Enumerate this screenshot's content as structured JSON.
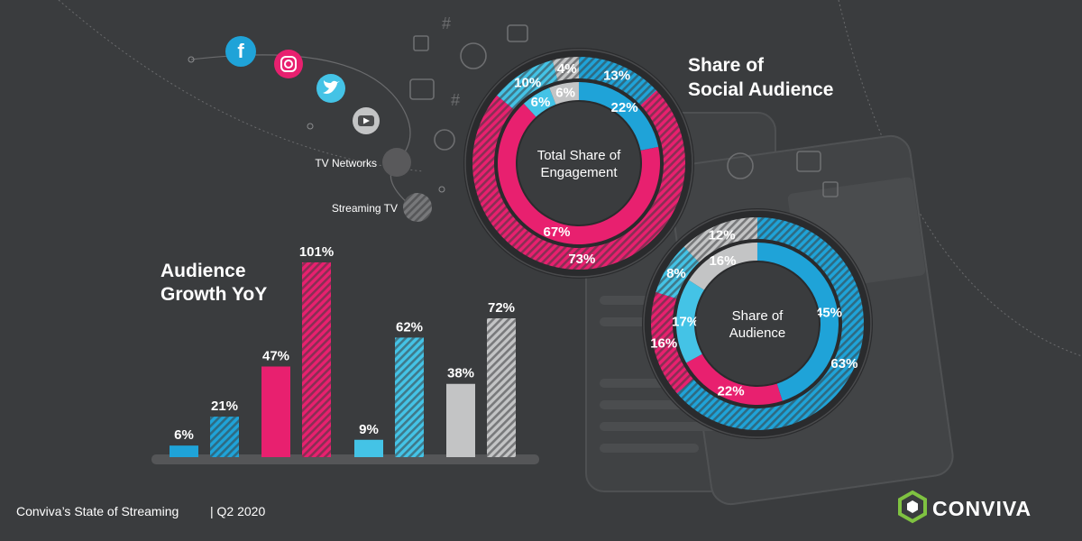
{
  "colors": {
    "background": "#3a3c3e",
    "facebook": "#1fa3d8",
    "instagram": "#e8206f",
    "twitter": "#44c3e6",
    "youtube": "#c3c4c5",
    "tv_networks": "#59595b",
    "streaming_tv": "#6b6c6e",
    "ring_base": "#2a2b2d",
    "text": "#ffffff"
  },
  "platforms": [
    {
      "key": "facebook",
      "icon": "facebook-icon",
      "glyph": "f"
    },
    {
      "key": "instagram",
      "icon": "instagram-icon",
      "glyph": ""
    },
    {
      "key": "twitter",
      "icon": "twitter-icon",
      "glyph": ""
    },
    {
      "key": "youtube",
      "icon": "youtube-icon",
      "glyph": ""
    },
    {
      "key": "tv_networks",
      "icon": "tv-networks-icon",
      "label": "TV Networks"
    },
    {
      "key": "streaming_tv",
      "icon": "streaming-tv-icon",
      "label": "Streaming TV"
    }
  ],
  "chart_data": [
    {
      "type": "bar",
      "title": "Audience Growth YoY",
      "categories": [
        "Facebook",
        "Instagram",
        "Twitter",
        "YouTube"
      ],
      "series": [
        {
          "style": "solid",
          "values": [
            6,
            47,
            9,
            38
          ],
          "labels": [
            "6%",
            "47%",
            "9%",
            "38%"
          ]
        },
        {
          "style": "hatched",
          "values": [
            21,
            101,
            62,
            72
          ],
          "labels": [
            "21%",
            "101%",
            "62%",
            "72%"
          ]
        }
      ],
      "colors": [
        "#1fa3d8",
        "#e8206f",
        "#44c3e6",
        "#c3c4c5"
      ],
      "ylim": [
        0,
        101
      ]
    },
    {
      "type": "pie",
      "title": "Share of Social Audience",
      "center_label": "Total Share of Engagement",
      "inner": {
        "style": "solid",
        "categories": [
          "Facebook",
          "Instagram",
          "Twitter",
          "YouTube"
        ],
        "values": [
          22,
          67,
          6,
          6
        ],
        "labels": [
          "22%",
          "67%",
          "6%",
          "6%"
        ]
      },
      "outer": {
        "style": "hatched",
        "categories": [
          "Facebook",
          "Instagram",
          "Twitter",
          "YouTube"
        ],
        "values": [
          13,
          73,
          10,
          4
        ],
        "labels": [
          "13%",
          "73%",
          "10%",
          "4%"
        ]
      }
    },
    {
      "type": "pie",
      "center_label": "Share of Audience",
      "inner": {
        "style": "solid",
        "categories": [
          "Facebook",
          "Instagram",
          "Twitter",
          "YouTube"
        ],
        "values": [
          45,
          22,
          17,
          16
        ],
        "labels": [
          "45%",
          "22%",
          "17%",
          "16%"
        ]
      },
      "outer": {
        "style": "hatched",
        "categories": [
          "Facebook",
          "Instagram",
          "Twitter",
          "YouTube"
        ],
        "values": [
          63,
          16,
          8,
          12
        ],
        "labels": [
          "63%",
          "16%",
          "8%",
          "12%"
        ]
      }
    }
  ],
  "footer": {
    "source": "Conviva’s State of Streaming",
    "period": "| Q2 2020",
    "brand": "CONVIVA"
  }
}
